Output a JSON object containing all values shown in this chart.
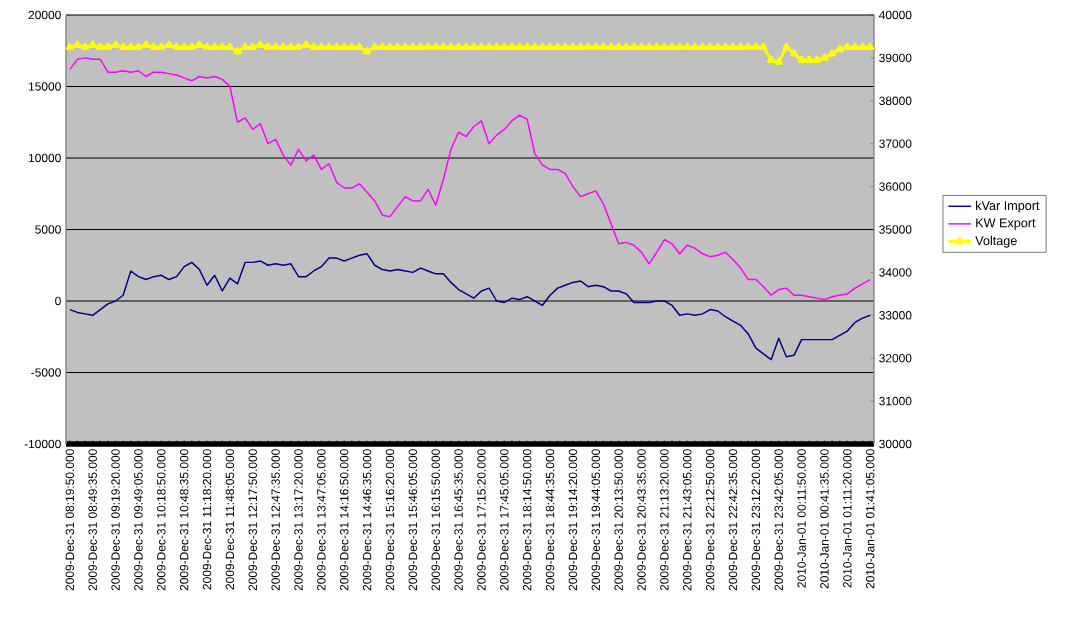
{
  "chart_data": {
    "type": "line",
    "categories": [
      "2009-Dec-31 08:19:50.000",
      null,
      null,
      "2009-Dec-31 08:49:35.000",
      null,
      null,
      "2009-Dec-31 09:19:20.000",
      null,
      null,
      "2009-Dec-31 09:49:05.000",
      null,
      null,
      "2009-Dec-31 10:18:50.000",
      null,
      null,
      "2009-Dec-31 10:48:35.000",
      null,
      null,
      "2009-Dec-31 11:18:20.000",
      null,
      null,
      "2009-Dec-31 11:48:05.000",
      null,
      null,
      "2009-Dec-31 12:17:50.000",
      null,
      null,
      "2009-Dec-31 12:47:35.000",
      null,
      null,
      "2009-Dec-31 13:17:20.000",
      null,
      null,
      "2009-Dec-31 13:47:05.000",
      null,
      null,
      "2009-Dec-31 14:16:50.000",
      null,
      null,
      "2009-Dec-31 14:46:35.000",
      null,
      null,
      "2009-Dec-31 15:16:20.000",
      null,
      null,
      "2009-Dec-31 15:46:05.000",
      null,
      null,
      "2009-Dec-31 16:15:50.000",
      null,
      null,
      "2009-Dec-31 16:45:35.000",
      null,
      null,
      "2009-Dec-31 17:15:20.000",
      null,
      null,
      "2009-Dec-31 17:45:05.000",
      null,
      null,
      "2009-Dec-31 18:14:50.000",
      null,
      null,
      "2009-Dec-31 18:44:35.000",
      null,
      null,
      "2009-Dec-31 19:14:20.000",
      null,
      null,
      "2009-Dec-31 19:44:05.000",
      null,
      null,
      "2009-Dec-31 20:13:50.000",
      null,
      null,
      "2009-Dec-31 20:43:35.000",
      null,
      null,
      "2009-Dec-31 21:13:20.000",
      null,
      null,
      "2009-Dec-31 21:43:05.000",
      null,
      null,
      "2009-Dec-31 22:12:50.000",
      null,
      null,
      "2009-Dec-31 22:42:35.000",
      null,
      null,
      "2009-Dec-31 23:12:20.000",
      null,
      null,
      "2009-Dec-31 23:42:05.000",
      null,
      null,
      "2010-Jan-01 00:11:50.000",
      null,
      null,
      "2010-Jan-01 00:41:35.000",
      null,
      null,
      "2010-Jan-01 01:11:20.000",
      null,
      null,
      "2010-Jan-01 01:41:05.000"
    ],
    "series": [
      {
        "name": "kVar Import",
        "color": "#000080",
        "marker": "none",
        "values": [
          -600,
          -800,
          -900,
          -1000,
          -600,
          -200,
          0,
          400,
          2100,
          1700,
          1500,
          1700,
          1800,
          1500,
          1700,
          2400,
          2700,
          2200,
          1100,
          1800,
          700,
          1600,
          1200,
          2700,
          2700,
          2800,
          2500,
          2600,
          2500,
          2600,
          1700,
          1700,
          2100,
          2400,
          3000,
          3000,
          2800,
          3000,
          3200,
          3300,
          2500,
          2200,
          2100,
          2200,
          2100,
          2000,
          2300,
          2100,
          1900,
          1900,
          1300,
          800,
          500,
          200,
          700,
          900,
          0,
          -100,
          200,
          100,
          300,
          0,
          -300,
          400,
          900,
          1100,
          1300,
          1400,
          1000,
          1100,
          1000,
          700,
          700,
          500,
          -100,
          -100,
          -100,
          0,
          0,
          -300,
          -1000,
          -900,
          -1000,
          -900,
          -600,
          -700,
          -1100,
          -1400,
          -1700,
          -2300,
          -3300,
          -3700,
          -4100,
          -2600,
          -3900,
          -3800,
          -2700,
          -2700,
          -2700,
          -2700,
          -2700,
          -2400,
          -2100,
          -1500,
          -1200,
          -1000
        ]
      },
      {
        "name": "KW Export",
        "color": "#ff00ff",
        "marker": "none",
        "values": [
          16200,
          16900,
          17000,
          16900,
          16900,
          16000,
          16000,
          16100,
          16000,
          16100,
          15700,
          16000,
          16000,
          15900,
          15800,
          15600,
          15400,
          15700,
          15600,
          15700,
          15500,
          15000,
          12500,
          12800,
          12000,
          12400,
          11000,
          11300,
          10200,
          9500,
          10600,
          9800,
          10200,
          9200,
          9600,
          8300,
          7900,
          7900,
          8200,
          7600,
          7000,
          6000,
          5900,
          6600,
          7300,
          7000,
          7000,
          7800,
          6700,
          8500,
          10600,
          11800,
          11500,
          12200,
          12600,
          11000,
          11600,
          12000,
          12600,
          13000,
          12700,
          10300,
          9500,
          9200,
          9200,
          8900,
          8000,
          7300,
          7500,
          7700,
          6800,
          5400,
          4000,
          4100,
          3900,
          3400,
          2600,
          3400,
          4300,
          4000,
          3300,
          3900,
          3700,
          3300,
          3100,
          3200,
          3400,
          2900,
          2300,
          1500,
          1500,
          1000,
          400,
          800,
          900,
          400,
          400,
          300,
          200,
          100,
          300,
          400,
          500,
          900,
          1200,
          1500
        ]
      },
      {
        "name": "Voltage",
        "color": "#ffff00",
        "marker": "triangle",
        "axis": "y2",
        "values": [
          39250,
          39300,
          39250,
          39300,
          39250,
          39250,
          39300,
          39250,
          39250,
          39250,
          39300,
          39250,
          39250,
          39300,
          39250,
          39250,
          39250,
          39300,
          39250,
          39250,
          39250,
          39250,
          39150,
          39250,
          39250,
          39300,
          39250,
          39250,
          39250,
          39250,
          39250,
          39300,
          39250,
          39250,
          39250,
          39250,
          39250,
          39250,
          39250,
          39150,
          39250,
          39250,
          39250,
          39250,
          39250,
          39250,
          39250,
          39250,
          39250,
          39250,
          39250,
          39250,
          39250,
          39250,
          39250,
          39250,
          39250,
          39250,
          39250,
          39250,
          39250,
          39250,
          39250,
          39250,
          39250,
          39250,
          39250,
          39250,
          39250,
          39250,
          39250,
          39250,
          39250,
          39250,
          39250,
          39250,
          39250,
          39250,
          39250,
          39250,
          39250,
          39250,
          39250,
          39250,
          39250,
          39250,
          39250,
          39250,
          39250,
          39250,
          39250,
          39250,
          38950,
          38900,
          39250,
          39100,
          38950,
          38950,
          38950,
          39000,
          39100,
          39200,
          39250,
          39250,
          39250,
          39250
        ]
      }
    ],
    "ylim": [
      -10000,
      20000
    ],
    "yticks": [
      -10000,
      -5000,
      0,
      5000,
      10000,
      15000,
      20000
    ],
    "y2lim": [
      30000,
      40000
    ],
    "y2ticks": [
      30000,
      31000,
      32000,
      33000,
      34000,
      35000,
      36000,
      37000,
      38000,
      39000,
      40000
    ],
    "grid": "y",
    "legend": "right"
  }
}
